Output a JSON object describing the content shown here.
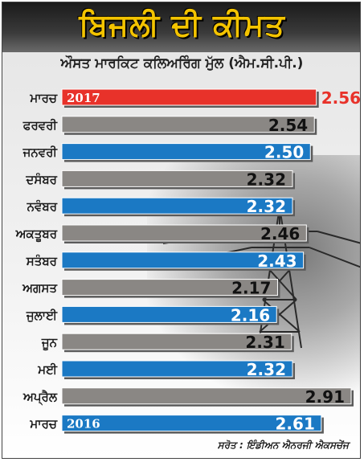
{
  "title": "ਬਿਜਲੀ ਦੀ ਕੀਮਤ",
  "subtitle": "ਔਸਤ ਮਾਰਕਿਟ ਕਲਿਅਰਿੰਗ ਮੁੱਲ (ਐਮ.ਸੀ.ਪੀ.)",
  "source": "ਸਰੋਤ : ਇੰਡੀਅਨ ਐਨਰਜੀ ਐਕਸਚੇਂਜ",
  "colors": {
    "highlight": "#e8322a",
    "blue": "#1b79c4",
    "gray": "#8a8784",
    "title": "#f4c400"
  },
  "chart_data": {
    "type": "bar",
    "orientation": "horizontal",
    "title": "ਬਿਜਲੀ ਦੀ ਕੀਮਤ",
    "subtitle": "ਔਸਤ ਮਾਰਕਿਟ ਕਲਿਅਰਿੰਗ ਮੁੱਲ (ਐਮ.ਸੀ.ਪੀ.)",
    "categories": [
      "ਮਾਰਚ",
      "ਫਰਵਰੀ",
      "ਜਨਵਰੀ",
      "ਦਸੰਬਰ",
      "ਨਵੰਬਰ",
      "ਅਕਤੂਬਰ",
      "ਸਤੰਬਰ",
      "ਅਗਸਤ",
      "ਜੁਲਾਈ",
      "ਜੂਨ",
      "ਮਈ",
      "ਅਪ੍ਰੈਲ",
      "ਮਾਰਚ"
    ],
    "values": [
      2.56,
      2.54,
      2.5,
      2.32,
      2.32,
      2.46,
      2.43,
      2.17,
      2.16,
      2.31,
      2.32,
      2.91,
      2.61
    ],
    "value_labels": [
      "2.56",
      "2.54",
      "2.50",
      "2.32",
      "2.32",
      "2.46",
      "2.43",
      "2.17",
      "2.16",
      "2.31",
      "2.32",
      "2.91",
      "2.61"
    ],
    "bar_styles": [
      "highlight",
      "gray",
      "blue",
      "gray",
      "blue",
      "gray",
      "blue",
      "gray",
      "blue",
      "gray",
      "blue",
      "gray",
      "blue"
    ],
    "year_labels": [
      "2017",
      "",
      "",
      "",
      "",
      "",
      "",
      "",
      "",
      "",
      "",
      "",
      "2016"
    ],
    "xlim": [
      0,
      2.91
    ]
  }
}
